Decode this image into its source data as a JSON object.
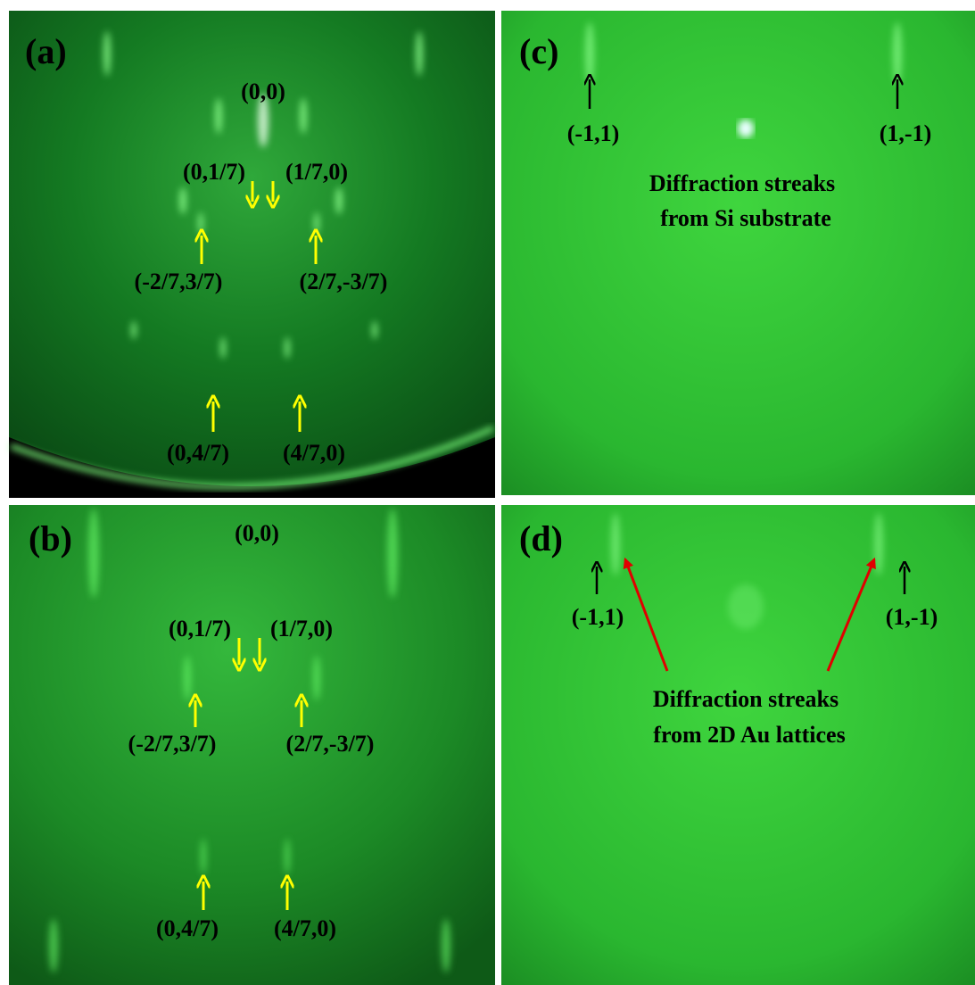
{
  "panels": [
    {
      "label": "(a)",
      "annotations": [
        "(0,0)",
        "(0,1/7)",
        "(1/7,0)",
        "(-2/7,3/7)",
        "(2/7,-3/7)",
        "(0,4/7)",
        "(4/7,0)"
      ]
    },
    {
      "label": "(b)",
      "annotations": [
        "(0,0)",
        "(0,1/7)",
        "(1/7,0)",
        "(-2/7,3/7)",
        "(2/7,-3/7)",
        "(0,4/7)",
        "(4/7,0)"
      ]
    },
    {
      "label": "(c)",
      "annotations": [
        "(-1,1)",
        "(1,-1)",
        "Diffraction streaks",
        "from Si substrate"
      ]
    },
    {
      "label": "(d)",
      "annotations": [
        "(-1,1)",
        "(1,-1)",
        "Diffraction streaks",
        "from 2D Au lattices"
      ]
    }
  ]
}
